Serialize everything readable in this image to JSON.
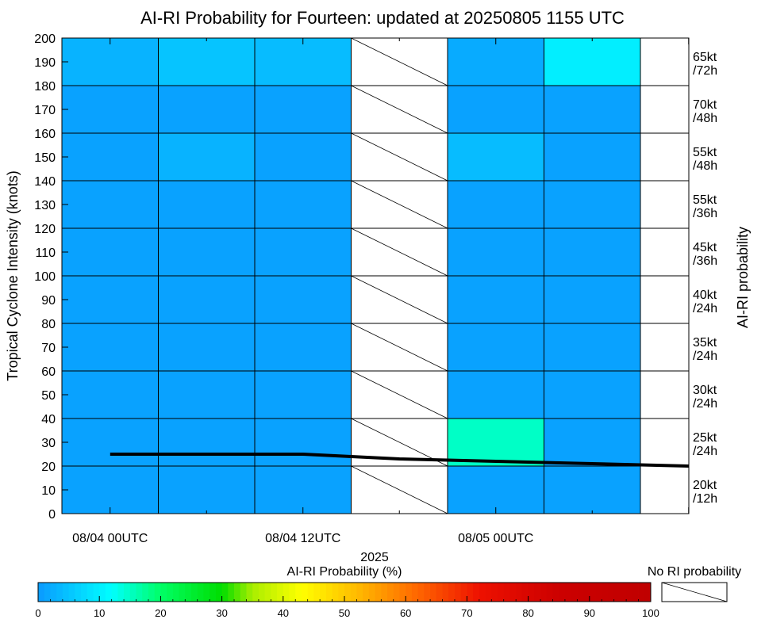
{
  "chart_data": {
    "type": "heatmap",
    "title": "AI-RI Probability for Fourteen: updated at 20250805 1155 UTC",
    "ylabel": "Tropical Cyclone Intensity (knots)",
    "right_axis_label": "AI-RI probability",
    "x_year_label": "2025",
    "x_tick_labels": [
      "08/04 00UTC",
      "08/04 12UTC",
      "08/05 00UTC"
    ],
    "x_time_columns": [
      "08/04 00UTC",
      "08/04 06UTC",
      "08/04 12UTC",
      "08/04 18UTC",
      "08/05 00UTC",
      "08/05 06UTC"
    ],
    "ylim": [
      0,
      200
    ],
    "y_ticks": [
      0,
      10,
      20,
      30,
      40,
      50,
      60,
      70,
      80,
      90,
      100,
      110,
      120,
      130,
      140,
      150,
      160,
      170,
      180,
      190,
      200
    ],
    "y_bands": [
      [
        0,
        20
      ],
      [
        20,
        40
      ],
      [
        40,
        60
      ],
      [
        60,
        80
      ],
      [
        80,
        100
      ],
      [
        100,
        120
      ],
      [
        120,
        140
      ],
      [
        140,
        160
      ],
      [
        160,
        180
      ],
      [
        180,
        200
      ]
    ],
    "row_labels": [
      [
        "20kt",
        "/12h"
      ],
      [
        "25kt",
        "/24h"
      ],
      [
        "30kt",
        "/24h"
      ],
      [
        "35kt",
        "/24h"
      ],
      [
        "40kt",
        "/24h"
      ],
      [
        "45kt",
        "/36h"
      ],
      [
        "55kt",
        "/36h"
      ],
      [
        "55kt",
        "/48h"
      ],
      [
        "70kt",
        "/48h"
      ],
      [
        "65kt",
        "/72h"
      ]
    ],
    "probabilities_percent": [
      [
        1,
        1,
        1,
        null,
        1,
        1
      ],
      [
        1,
        1,
        1,
        null,
        15,
        1
      ],
      [
        1,
        1,
        1,
        null,
        1,
        1
      ],
      [
        1,
        1,
        1,
        null,
        1,
        1
      ],
      [
        1,
        1,
        1,
        null,
        1,
        1
      ],
      [
        1,
        1,
        1,
        null,
        1,
        1
      ],
      [
        1,
        1,
        1,
        null,
        1,
        1
      ],
      [
        1,
        3,
        1,
        null,
        4,
        1
      ],
      [
        1,
        1,
        1,
        null,
        1,
        1
      ],
      [
        3,
        5,
        4,
        null,
        2,
        10
      ]
    ],
    "intensity_series": {
      "x_hours": [
        0,
        12,
        18,
        24,
        30,
        36
      ],
      "knots": [
        25,
        25,
        23,
        22,
        21,
        20
      ]
    },
    "colorbar": {
      "label": "AI-RI Probability (%)",
      "ticks": [
        0,
        10,
        20,
        30,
        40,
        50,
        60,
        70,
        80,
        90,
        100
      ],
      "stops": [
        {
          "v": 0,
          "c": "#0a9aff"
        },
        {
          "v": 12,
          "c": "#00ffff"
        },
        {
          "v": 20,
          "c": "#00ff66"
        },
        {
          "v": 30,
          "c": "#00dd00"
        },
        {
          "v": 35,
          "c": "#aaee00"
        },
        {
          "v": 43,
          "c": "#ffff00"
        },
        {
          "v": 52,
          "c": "#ffbb00"
        },
        {
          "v": 62,
          "c": "#ff6600"
        },
        {
          "v": 72,
          "c": "#ee1100"
        },
        {
          "v": 85,
          "c": "#cc0000"
        },
        {
          "v": 100,
          "c": "#c00000"
        }
      ]
    },
    "no_ri_label": "No RI probability",
    "line_color": "#000000",
    "grid": true
  }
}
